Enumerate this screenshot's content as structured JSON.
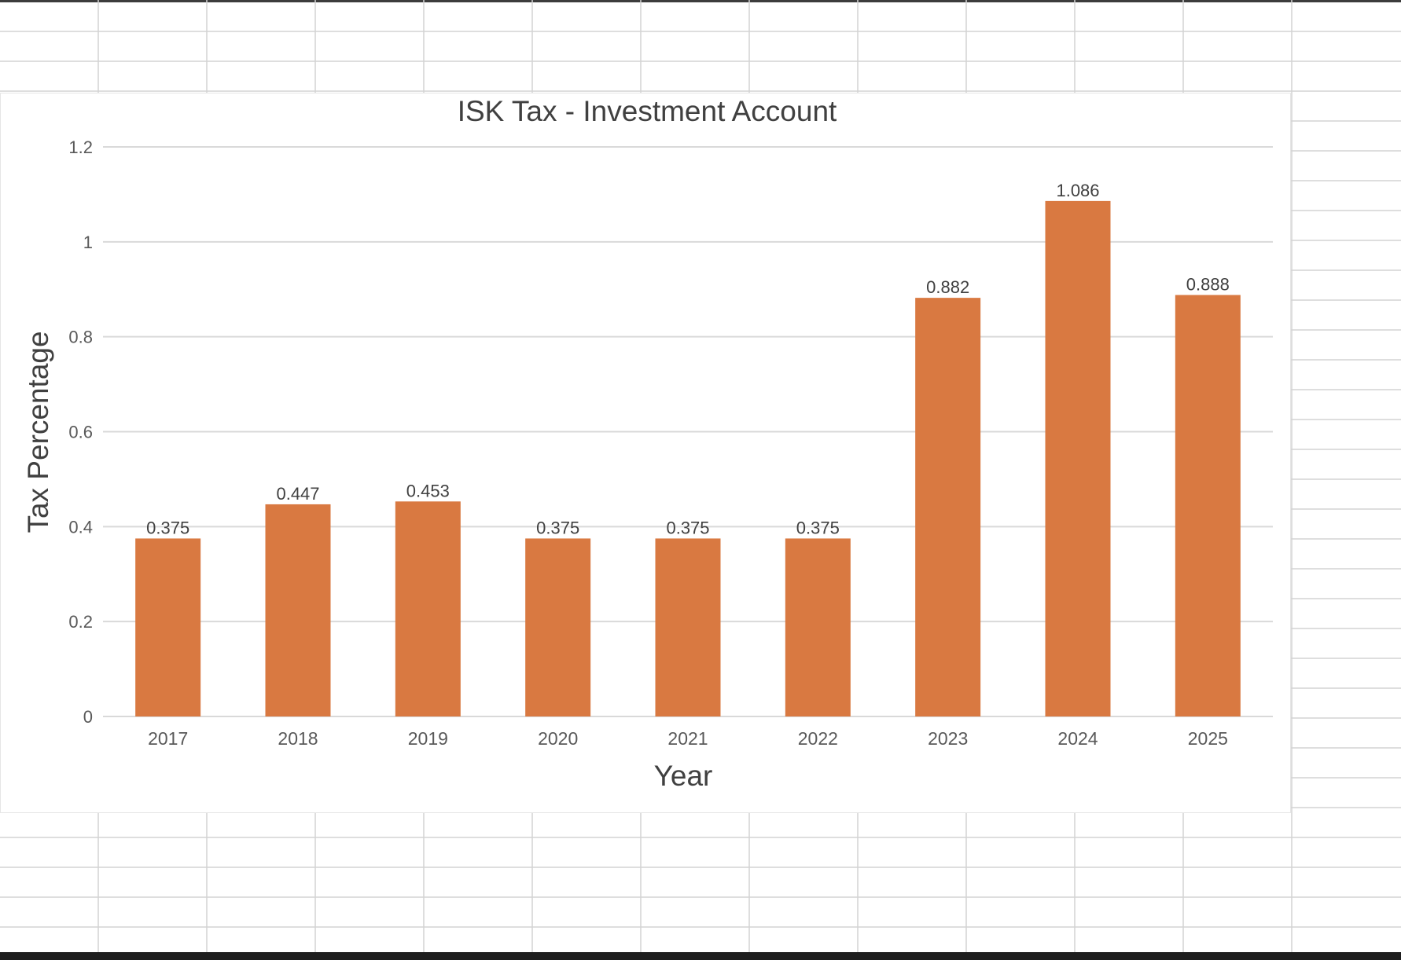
{
  "colors": {
    "bar": "#d97941",
    "grid": "#d9d9d9",
    "sheet_grid": "#d4d4d4",
    "text": "#404040"
  },
  "chart_data": {
    "type": "bar",
    "title": "ISK Tax - Investment Account",
    "xlabel": "Year",
    "ylabel": "Tax Percentage",
    "categories": [
      "2017",
      "2018",
      "2019",
      "2020",
      "2021",
      "2022",
      "2023",
      "2024",
      "2025"
    ],
    "values": [
      0.375,
      0.447,
      0.453,
      0.375,
      0.375,
      0.375,
      0.882,
      1.086,
      0.888
    ],
    "data_labels": [
      "0.375",
      "0.447",
      "0.453",
      "0.375",
      "0.375",
      "0.375",
      "0.882",
      "1.086",
      "0.888"
    ],
    "yticks": [
      "0",
      "0.2",
      "0.4",
      "0.6",
      "0.8",
      "1",
      "1.2"
    ],
    "ylim": [
      0,
      1.2
    ],
    "grid": true,
    "legend": "none"
  }
}
